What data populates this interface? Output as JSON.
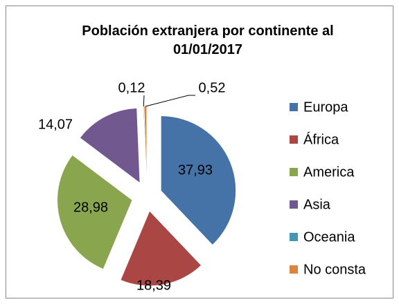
{
  "chart_data": {
    "type": "pie",
    "title": "Población extranjera por continente al 01/01/2017",
    "categories": [
      "Europa",
      "África",
      "America",
      "Asia",
      "Oceania",
      "No consta"
    ],
    "values": [
      37.93,
      18.39,
      28.98,
      14.07,
      0.12,
      0.52
    ],
    "value_labels": [
      "37,93",
      "18,39",
      "28,98",
      "14,07",
      "0,12",
      "0,52"
    ],
    "colors": [
      "#4572a7",
      "#aa4643",
      "#89a54e",
      "#71588f",
      "#4198af",
      "#db843d"
    ],
    "legend": "right"
  }
}
